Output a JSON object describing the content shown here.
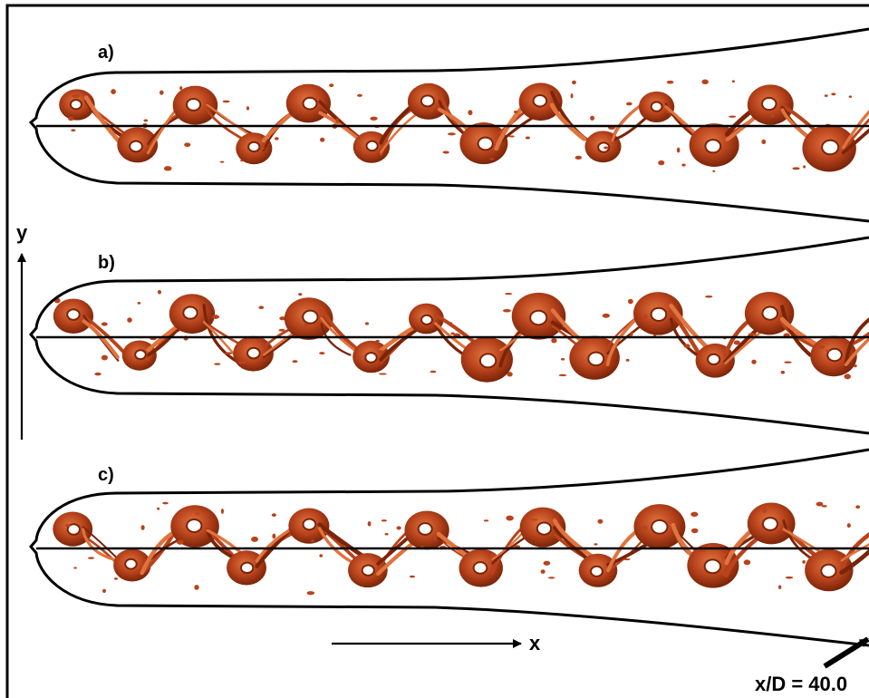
{
  "panels": [
    {
      "label": "a)"
    },
    {
      "label": "b)"
    },
    {
      "label": "c)"
    }
  ],
  "axes": {
    "y_label": "y",
    "x_label": "x"
  },
  "annotation": {
    "text": "x/D = 40.0"
  },
  "colors": {
    "vortex_fill": "#b8431c",
    "vortex_dark": "#7a2408",
    "vortex_light": "#e0733e",
    "outline": "#000000",
    "background": "#ffffff"
  }
}
